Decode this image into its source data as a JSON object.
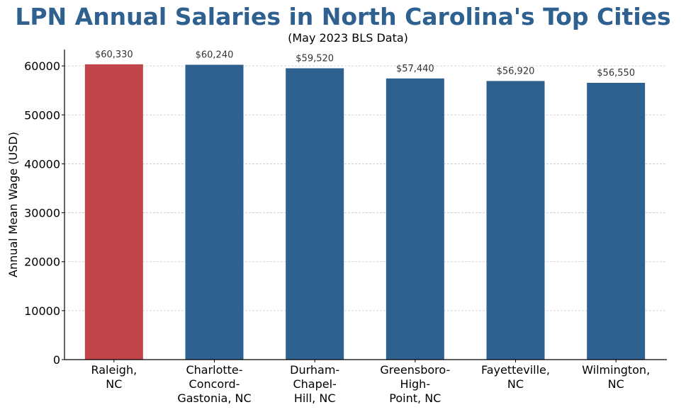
{
  "chart_data": {
    "type": "bar",
    "title": "LPN Annual Salaries in North Carolina's Top Cities",
    "subtitle": "(May 2023 BLS Data)",
    "xlabel": "",
    "ylabel": "Annual Mean Wage (USD)",
    "categories": [
      [
        "Raleigh,",
        "NC"
      ],
      [
        "Charlotte-",
        "Concord-",
        "Gastonia, NC"
      ],
      [
        "Durham-",
        "Chapel-",
        "Hill, NC"
      ],
      [
        "Greensboro-",
        "High-",
        "Point, NC"
      ],
      [
        "Fayetteville,",
        "NC"
      ],
      [
        "Wilmington,",
        "NC"
      ]
    ],
    "values": [
      60330,
      60240,
      59520,
      57440,
      56920,
      56550
    ],
    "data_labels": [
      "$60,330",
      "$60,240",
      "$59,520",
      "$57,440",
      "$56,920",
      "$56,550"
    ],
    "yticks": [
      0,
      10000,
      20000,
      30000,
      40000,
      50000,
      60000
    ],
    "ylim": [
      0,
      63347
    ],
    "grid": "y-dashed",
    "legend": "none",
    "colors": {
      "highlight": "#C0444A",
      "default": "#2E6190",
      "title": "#2E6190",
      "axis": "#000000",
      "grid": "#c8c8c8",
      "label": "#333333"
    },
    "highlight_index": 0
  }
}
